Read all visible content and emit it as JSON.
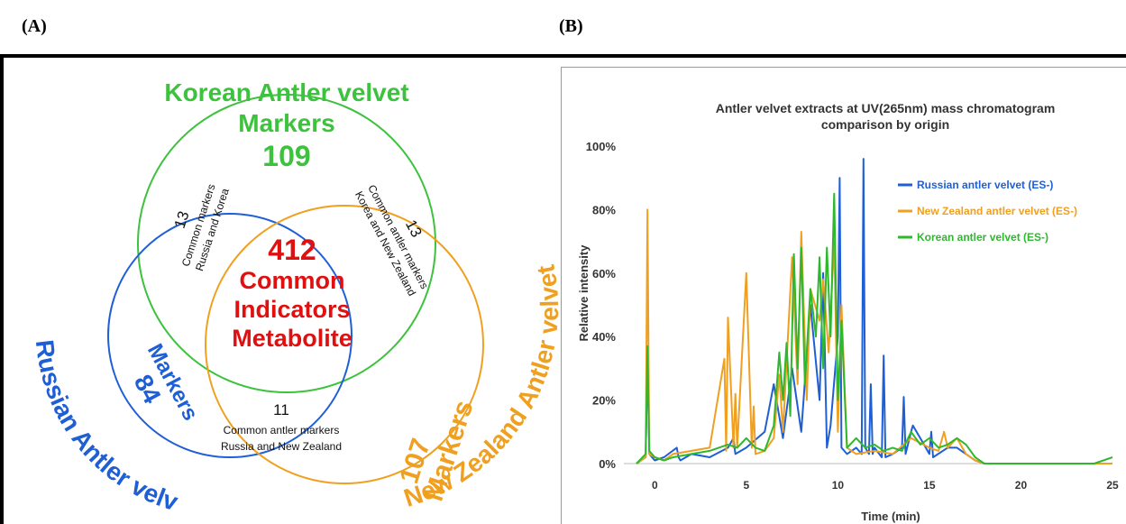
{
  "panel_labels": {
    "a": "(A)",
    "b": "(B)"
  },
  "venn": {
    "korean": {
      "title_line1": "Korean Antler velvet",
      "title_line2": "Markers",
      "count": "109",
      "color": "#3cc23c"
    },
    "russian": {
      "title": "Russian Antler velvet",
      "markers": "Markers",
      "count": "84",
      "color": "#1f5fd6"
    },
    "nz": {
      "title": "New Zealand Antler velvet",
      "markers": "Markers",
      "count": "107",
      "color": "#f0a020"
    },
    "center": {
      "count": "412",
      "line1": "Common",
      "line2": "Indicators",
      "line3": "Metabolite",
      "color": "#e01010"
    },
    "russia_korea": {
      "count": "13",
      "line1": "Common markers",
      "line2": "Russia and Korea"
    },
    "korea_nz": {
      "count": "13",
      "line1": "Common antler markers",
      "line2": "Korea and New Zealand"
    },
    "russia_nz": {
      "count": "11",
      "line1": "Common antler markers",
      "line2": "Russia and New Zealand"
    }
  },
  "chart_data": {
    "type": "line",
    "title_line1": "Antler velvet extracts at UV(265nm) mass chromatogram",
    "title_line2": "comparison by origin",
    "xlabel": "Time (min)",
    "ylabel": "Relative intensity",
    "xlim": [
      -1,
      25
    ],
    "ylim": [
      0,
      100
    ],
    "xticks": [
      0,
      5,
      10,
      15,
      20,
      25
    ],
    "yticks": [
      "0%",
      "20%",
      "40%",
      "60%",
      "80%",
      "100%"
    ],
    "ytick_values": [
      0,
      20,
      40,
      60,
      80,
      100
    ],
    "grid": false,
    "legend_position": "top-right",
    "series": [
      {
        "name": "Russian antler velvet (ES-)",
        "color": "#1f5fd6",
        "x": [
          -1,
          -0.5,
          -0.4,
          -0.3,
          0,
          0.5,
          1.2,
          1.3,
          1.4,
          2,
          3,
          4,
          4.3,
          4.4,
          5,
          6,
          6.5,
          7,
          7.5,
          8,
          8.5,
          9,
          9.2,
          9.4,
          9.6,
          10,
          10.1,
          10.2,
          10.5,
          11,
          11.3,
          11.4,
          11.5,
          11.7,
          11.8,
          11.9,
          12,
          12.4,
          12.5,
          12.6,
          13,
          13.5,
          13.6,
          13.7,
          14,
          14.1,
          14.5,
          15,
          15.1,
          15.2,
          16,
          16.5,
          17,
          17.5,
          18,
          19,
          20,
          21,
          22,
          23,
          24,
          25
        ],
        "y": [
          0,
          2,
          35,
          3,
          1,
          2,
          5,
          2,
          1,
          3,
          2,
          5,
          8,
          3,
          5,
          10,
          25,
          8,
          30,
          10,
          50,
          20,
          60,
          5,
          12,
          40,
          90,
          5,
          3,
          5,
          3,
          96,
          5,
          3,
          25,
          3,
          5,
          2,
          34,
          2,
          3,
          5,
          21,
          3,
          10,
          12,
          8,
          3,
          10,
          2,
          5,
          5,
          3,
          1,
          0,
          0,
          0,
          0,
          0,
          0,
          0,
          0
        ]
      },
      {
        "name": "New Zealand antler velvet (ES-)",
        "color": "#f0a020",
        "x": [
          -1,
          -0.5,
          -0.4,
          -0.3,
          0,
          0.5,
          1,
          2,
          3,
          3.8,
          3.9,
          4,
          4.3,
          4.4,
          4.5,
          5,
          5.3,
          5.4,
          5.5,
          6,
          6.5,
          6.8,
          7,
          7.5,
          7.8,
          8,
          8.3,
          8.5,
          9,
          9.2,
          9.5,
          9.8,
          10,
          10.2,
          10.5,
          11,
          12,
          13,
          14,
          15,
          15.5,
          15.8,
          16,
          16.5,
          17,
          17.5,
          18,
          19,
          20,
          21,
          22,
          23,
          24,
          25
        ],
        "y": [
          0,
          2,
          80,
          3,
          2,
          1,
          3,
          4,
          5,
          33,
          4,
          46,
          5,
          22,
          5,
          60,
          5,
          18,
          3,
          4,
          8,
          28,
          10,
          65,
          25,
          73,
          20,
          55,
          45,
          58,
          35,
          70,
          10,
          50,
          5,
          3,
          4,
          3,
          8,
          5,
          4,
          10,
          5,
          8,
          3,
          1,
          0,
          0,
          0,
          0,
          0,
          0,
          0,
          0
        ]
      },
      {
        "name": "Korean antler velvet (ES-)",
        "color": "#2db82d",
        "x": [
          -1,
          -0.5,
          -0.4,
          -0.3,
          0,
          0.5,
          1,
          2,
          3,
          4,
          4.5,
          5,
          5.5,
          6,
          6.5,
          6.8,
          7,
          7.2,
          7.4,
          7.6,
          7.8,
          8,
          8.2,
          8.5,
          8.8,
          9,
          9.2,
          9.4,
          9.6,
          9.8,
          10,
          10.2,
          10.5,
          11,
          11.5,
          12,
          12.5,
          13,
          13.5,
          14,
          14.5,
          15,
          15.5,
          16,
          16.5,
          17,
          17.5,
          18,
          19,
          20,
          21,
          22,
          23,
          24,
          25
        ],
        "y": [
          0,
          3,
          37,
          4,
          2,
          1,
          2,
          3,
          4,
          6,
          5,
          8,
          5,
          4,
          12,
          35,
          20,
          38,
          15,
          66,
          30,
          68,
          25,
          55,
          40,
          65,
          30,
          68,
          40,
          85,
          20,
          45,
          5,
          8,
          5,
          6,
          4,
          5,
          4,
          10,
          6,
          8,
          5,
          6,
          8,
          6,
          2,
          0,
          0,
          0,
          0,
          0,
          0,
          0,
          2
        ]
      }
    ]
  }
}
